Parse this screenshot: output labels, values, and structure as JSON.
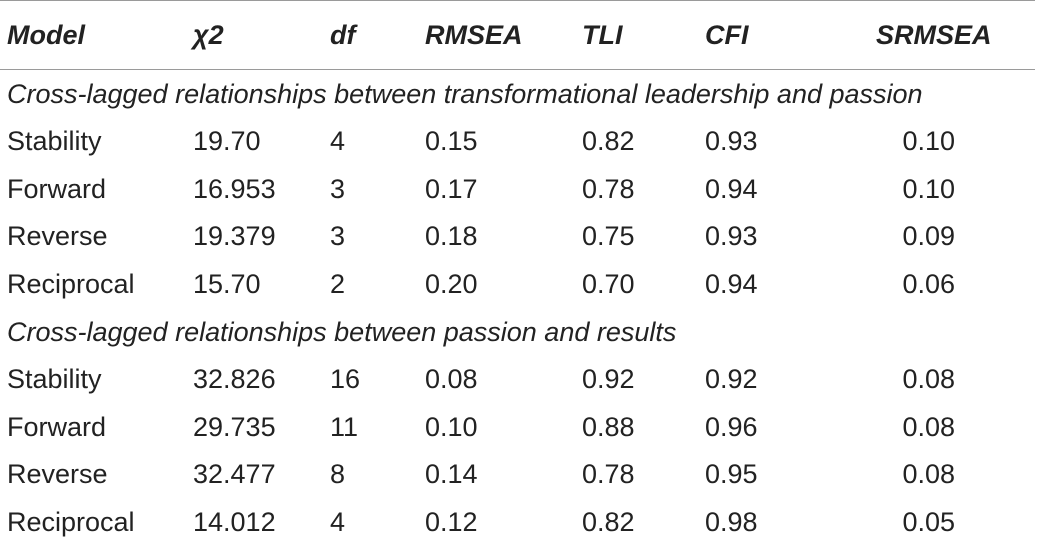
{
  "table": {
    "headers": {
      "model": "Model",
      "chi2": "χ2",
      "df": "df",
      "rmsea": "RMSEA",
      "tli": "TLI",
      "cfi": "CFI",
      "srmsea": "SRMSEA"
    },
    "sections": [
      {
        "title": "Cross-lagged relationships between transformational leadership and passion",
        "rows": [
          {
            "model": "Stability",
            "chi2": "19.70",
            "df": "4",
            "rmsea": "0.15",
            "tli": "0.82",
            "cfi": "0.93",
            "srmsea": "0.10"
          },
          {
            "model": "Forward",
            "chi2": "16.953",
            "df": "3",
            "rmsea": "0.17",
            "tli": "0.78",
            "cfi": "0.94",
            "srmsea": "0.10"
          },
          {
            "model": "Reverse",
            "chi2": "19.379",
            "df": "3",
            "rmsea": "0.18",
            "tli": "0.75",
            "cfi": "0.93",
            "srmsea": "0.09"
          },
          {
            "model": "Reciprocal",
            "chi2": "15.70",
            "df": "2",
            "rmsea": "0.20",
            "tli": "0.70",
            "cfi": "0.94",
            "srmsea": "0.06"
          }
        ]
      },
      {
        "title": "Cross-lagged relationships between passion and results",
        "rows": [
          {
            "model": "Stability",
            "chi2": "32.826",
            "df": "16",
            "rmsea": "0.08",
            "tli": "0.92",
            "cfi": "0.92",
            "srmsea": "0.08"
          },
          {
            "model": "Forward",
            "chi2": "29.735",
            "df": "11",
            "rmsea": "0.10",
            "tli": "0.88",
            "cfi": "0.96",
            "srmsea": "0.08"
          },
          {
            "model": "Reverse",
            "chi2": "32.477",
            "df": "8",
            "rmsea": "0.14",
            "tli": "0.78",
            "cfi": "0.95",
            "srmsea": "0.08"
          },
          {
            "model": "Reciprocal",
            "chi2": "14.012",
            "df": "4",
            "rmsea": "0.12",
            "tli": "0.82",
            "cfi": "0.98",
            "srmsea": "0.05"
          }
        ]
      }
    ]
  }
}
